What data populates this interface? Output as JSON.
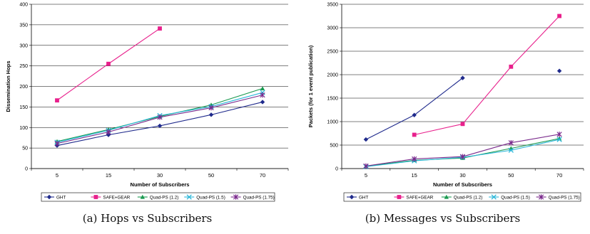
{
  "chart_data": [
    {
      "type": "line",
      "title": "",
      "xlabel": "Number of Subscribers",
      "ylabel": "Dissemination Hops",
      "categories": [
        "5",
        "15",
        "30",
        "50",
        "70"
      ],
      "ylim": [
        0,
        400
      ],
      "yticks": [
        0,
        50,
        100,
        150,
        200,
        250,
        300,
        350,
        400
      ],
      "grid": "horizontal",
      "legend": "bottom",
      "caption": "(a)  Hops vs Subscribers",
      "series": [
        {
          "name": "GHT",
          "color": "#1f2a8c",
          "marker": "diamond",
          "values": [
            56,
            82,
            104,
            131,
            162
          ]
        },
        {
          "name": "SAFE+GEAR",
          "color": "#e8208c",
          "marker": "square",
          "values": [
            166,
            255,
            341,
            null,
            null
          ]
        },
        {
          "name": "Quad-PS (1.2)",
          "color": "#1a9a50",
          "marker": "triangle",
          "values": [
            66,
            95,
            127,
            155,
            195
          ]
        },
        {
          "name": "Quad-PS (1.5)",
          "color": "#29b6d8",
          "marker": "x",
          "values": [
            64,
            93,
            129,
            151,
            185
          ]
        },
        {
          "name": "Quad-PS (1.75)",
          "color": "#7a2a8c",
          "marker": "star",
          "values": [
            61,
            89,
            125,
            148,
            179
          ]
        }
      ]
    },
    {
      "type": "line",
      "title": "",
      "xlabel": "Number of Subscribers",
      "ylabel": "Packets (for 1 event publication)",
      "categories": [
        "5",
        "15",
        "30",
        "50",
        "70"
      ],
      "ylim": [
        0,
        3500
      ],
      "yticks": [
        0,
        500,
        1000,
        1500,
        2000,
        2500,
        3000,
        3500
      ],
      "grid": "horizontal",
      "legend": "bottom",
      "caption": "(b)  Messages vs Subscribers",
      "series": [
        {
          "name": "GHT",
          "color": "#1f2a8c",
          "marker": "diamond",
          "values": [
            620,
            1140,
            1930,
            null,
            2080
          ]
        },
        {
          "name": "SAFE+GEAR",
          "color": "#e8208c",
          "marker": "square",
          "values": [
            null,
            720,
            950,
            2170,
            3250
          ]
        },
        {
          "name": "Quad-PS (1.2)",
          "color": "#1a9a50",
          "marker": "triangle",
          "values": [
            50,
            175,
            225,
            430,
            640
          ]
        },
        {
          "name": "Quad-PS (1.5)",
          "color": "#29b6d8",
          "marker": "x",
          "values": [
            40,
            165,
            240,
            390,
            620
          ]
        },
        {
          "name": "Quad-PS (1.75)",
          "color": "#7a2a8c",
          "marker": "star",
          "values": [
            55,
            205,
            255,
            550,
            730
          ]
        }
      ]
    }
  ]
}
